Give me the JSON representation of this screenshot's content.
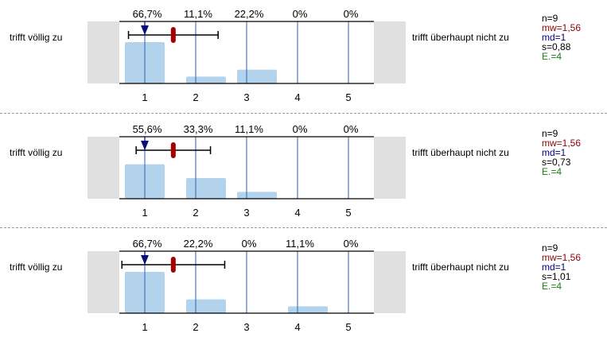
{
  "labels": {
    "left": "trifft völlig zu",
    "right": "trifft überhaupt nicht zu"
  },
  "colors": {
    "bar": "#b3d3ec",
    "gridline": "#2b62b0",
    "side_box": "#e0e0e0",
    "median_marker": "#0b0b80",
    "mean_marker": "#a40000",
    "n": "#000000",
    "mw": "#8b0000",
    "md": "#00008b",
    "s": "#000000",
    "e": "#1a7f1a"
  },
  "chart_data": [
    {
      "type": "bar",
      "categories": [
        "1",
        "2",
        "3",
        "4",
        "5"
      ],
      "percent_labels": [
        "66,7%",
        "11,1%",
        "22,2%",
        "0%",
        "0%"
      ],
      "values": [
        66.7,
        11.1,
        22.2,
        0,
        0
      ],
      "mean": 1.56,
      "median": 1,
      "sd": 0.88,
      "stats": {
        "n": "n=9",
        "mw": "mw=1,56",
        "md": "md=1",
        "s": "s=0,88",
        "e": "E.=4"
      }
    },
    {
      "type": "bar",
      "categories": [
        "1",
        "2",
        "3",
        "4",
        "5"
      ],
      "percent_labels": [
        "55,6%",
        "33,3%",
        "11,1%",
        "0%",
        "0%"
      ],
      "values": [
        55.6,
        33.3,
        11.1,
        0,
        0
      ],
      "mean": 1.56,
      "median": 1,
      "sd": 0.73,
      "stats": {
        "n": "n=9",
        "mw": "mw=1,56",
        "md": "md=1",
        "s": "s=0,73",
        "e": "E.=4"
      }
    },
    {
      "type": "bar",
      "categories": [
        "1",
        "2",
        "3",
        "4",
        "5"
      ],
      "percent_labels": [
        "66,7%",
        "22,2%",
        "0%",
        "11,1%",
        "0%"
      ],
      "values": [
        66.7,
        22.2,
        0,
        11.1,
        0
      ],
      "mean": 1.56,
      "median": 1,
      "sd": 1.01,
      "stats": {
        "n": "n=9",
        "mw": "mw=1,56",
        "md": "md=1",
        "s": "s=1,01",
        "e": "E.=4"
      }
    }
  ]
}
